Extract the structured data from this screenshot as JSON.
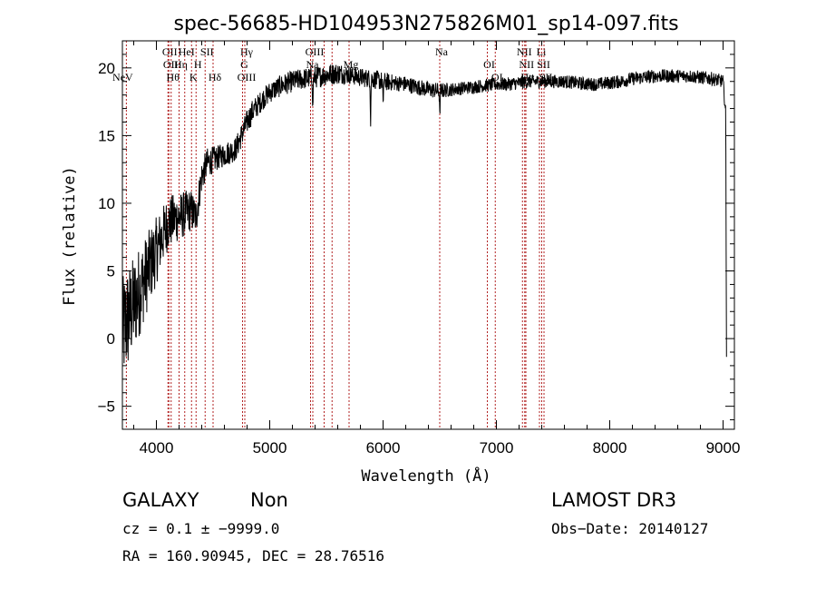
{
  "chart_data": {
    "type": "line",
    "title": "spec-56685-HD104953N275826M01_sp14-097.fits",
    "xlabel": "Wavelength (Å)",
    "ylabel": "Flux (relative)",
    "xlim": [
      3700,
      9100
    ],
    "ylim": [
      -6.7,
      22
    ],
    "xticks": [
      {
        "value": 4000,
        "label": "4000"
      },
      {
        "value": 5000,
        "label": "5000"
      },
      {
        "value": 6000,
        "label": "6000"
      },
      {
        "value": 7000,
        "label": "7000"
      },
      {
        "value": 8000,
        "label": "8000"
      },
      {
        "value": 9000,
        "label": "9000"
      }
    ],
    "yticks": [
      {
        "value": -5,
        "label": "−5"
      },
      {
        "value": 0,
        "label": "0"
      },
      {
        "value": 5,
        "label": "5"
      },
      {
        "value": 10,
        "label": "10"
      },
      {
        "value": 15,
        "label": "15"
      },
      {
        "value": 20,
        "label": "20"
      }
    ],
    "series": [
      {
        "name": "spectrum",
        "color": "#000000",
        "x": [
          3700,
          3750,
          3800,
          3850,
          3900,
          3950,
          4000,
          4050,
          4100,
          4150,
          4200,
          4250,
          4300,
          4350,
          4400,
          4450,
          4500,
          4550,
          4600,
          4650,
          4700,
          4750,
          4800,
          4850,
          4900,
          4950,
          5000,
          5100,
          5200,
          5300,
          5400,
          5500,
          5600,
          5700,
          5800,
          5900,
          6000,
          6100,
          6200,
          6300,
          6400,
          6500,
          6600,
          6700,
          6800,
          6900,
          7000,
          7100,
          7200,
          7300,
          7400,
          7500,
          7600,
          7700,
          7800,
          7900,
          8000,
          8100,
          8200,
          8300,
          8400,
          8500,
          8600,
          8700,
          8800,
          8900,
          9000,
          9030
        ],
        "y": [
          0.5,
          1.5,
          2.5,
          3.5,
          4.5,
          5.5,
          6.5,
          7.5,
          8.5,
          8.8,
          9.0,
          9.2,
          9.5,
          9.0,
          12.0,
          13.0,
          13.2,
          13.4,
          13.6,
          13.8,
          14.0,
          15.0,
          16.0,
          16.8,
          17.3,
          17.8,
          18.2,
          18.7,
          19.0,
          19.2,
          19.3,
          19.5,
          19.6,
          19.5,
          19.3,
          19.2,
          19.0,
          18.9,
          18.8,
          18.6,
          18.4,
          18.3,
          18.4,
          18.5,
          18.6,
          18.7,
          18.8,
          18.8,
          18.9,
          19.0,
          19.0,
          19.0,
          19.0,
          18.9,
          18.8,
          18.8,
          18.9,
          19.0,
          19.2,
          19.3,
          19.4,
          19.4,
          19.4,
          19.4,
          19.3,
          19.2,
          19.0,
          16.0
        ],
        "noise_amplitude": [
          4.0,
          4.0,
          3.6,
          3.4,
          3.0,
          2.8,
          2.5,
          2.2,
          2.0,
          1.9,
          1.8,
          1.7,
          1.6,
          1.4,
          1.2,
          1.1,
          1.0,
          0.9,
          0.9,
          0.9,
          0.9,
          0.9,
          0.9,
          0.9,
          0.8,
          0.8,
          0.8,
          0.8,
          0.8,
          0.8,
          0.8,
          0.8,
          0.8,
          0.7,
          0.7,
          0.7,
          0.7,
          0.6,
          0.6,
          0.6,
          0.6,
          0.6,
          0.5,
          0.5,
          0.5,
          0.5,
          0.5,
          0.5,
          0.5,
          0.5,
          0.5,
          0.5,
          0.5,
          0.5,
          0.5,
          0.5,
          0.5,
          0.5,
          0.5,
          0.5,
          0.5,
          0.5,
          0.5,
          0.5,
          0.5,
          0.5,
          0.5,
          0.5
        ],
        "dips": [
          {
            "x": 5380,
            "depth": 2.5
          },
          {
            "x": 5890,
            "depth": 3.0
          },
          {
            "x": 6000,
            "depth": 2.0
          },
          {
            "x": 6500,
            "depth": 2.0
          },
          {
            "x": 9030,
            "depth": 17.0
          }
        ]
      }
    ],
    "line_markers": {
      "color": "#b22222",
      "lines": [
        {
          "x": 3735,
          "label": "NeV",
          "row": 2,
          "dx": -6
        },
        {
          "x": 4102,
          "label": "OII",
          "row": 0,
          "dx": 0
        },
        {
          "x": 4110,
          "label": "OII",
          "row": 1,
          "dx": 0
        },
        {
          "x": 4130,
          "label": "Hθ",
          "row": 2,
          "dx": 0
        },
        {
          "x": 4200,
          "label": "Hη",
          "row": 1,
          "dx": 0
        },
        {
          "x": 4250,
          "label": "HeI",
          "row": 0,
          "dx": 0
        },
        {
          "x": 4310,
          "label": "K",
          "row": 2,
          "dx": 0
        },
        {
          "x": 4350,
          "label": "H",
          "row": 1,
          "dx": 0
        },
        {
          "x": 4430,
          "label": "SII",
          "row": 0,
          "dx": 0
        },
        {
          "x": 4500,
          "label": "Hδ",
          "row": 2,
          "dx": 0
        },
        {
          "x": 4780,
          "label": "Hγ",
          "row": 0,
          "dx": 0
        },
        {
          "x": 4760,
          "label": "G",
          "row": 1,
          "dx": 0
        },
        {
          "x": 4780,
          "label": "OIII",
          "row": 2,
          "dx": 0
        },
        {
          "x": 5380,
          "label": "OIII",
          "row": 0,
          "dx": 0
        },
        {
          "x": 5360,
          "label": "Na",
          "row": 1,
          "dx": 0
        },
        {
          "x": 5480,
          "label": "OI",
          "row": 2,
          "dx": 0
        },
        {
          "x": 5550,
          "label": "",
          "row": 1,
          "dx": 0
        },
        {
          "x": 5700,
          "label": "Mg",
          "row": 1,
          "dx": 0
        },
        {
          "x": 6500,
          "label": "Na",
          "row": 0,
          "dx": 0
        },
        {
          "x": 6920,
          "label": "OI",
          "row": 1,
          "dx": 0
        },
        {
          "x": 6990,
          "label": "OI",
          "row": 2,
          "dx": 0
        },
        {
          "x": 7230,
          "label": "NII",
          "row": 0,
          "dx": 0
        },
        {
          "x": 7250,
          "label": "NII",
          "row": 1,
          "dx": 0
        },
        {
          "x": 7260,
          "label": "Hα",
          "row": 2,
          "dx": 0
        },
        {
          "x": 7380,
          "label": "Li",
          "row": 0,
          "dx": 0
        },
        {
          "x": 7400,
          "label": "SII",
          "row": 1,
          "dx": 0
        },
        {
          "x": 7420,
          "label": "SII",
          "row": 2,
          "dx": 0
        }
      ]
    }
  },
  "info": {
    "class_label": "GALAXY",
    "subclass_label": "Non",
    "survey_label": "LAMOST DR3",
    "cz_text": "cz = 0.1 ± −9999.0",
    "obs_date_text": "Obs−Date: 20140127",
    "radec_text": "RA = 160.90945, DEC =  28.76516"
  }
}
